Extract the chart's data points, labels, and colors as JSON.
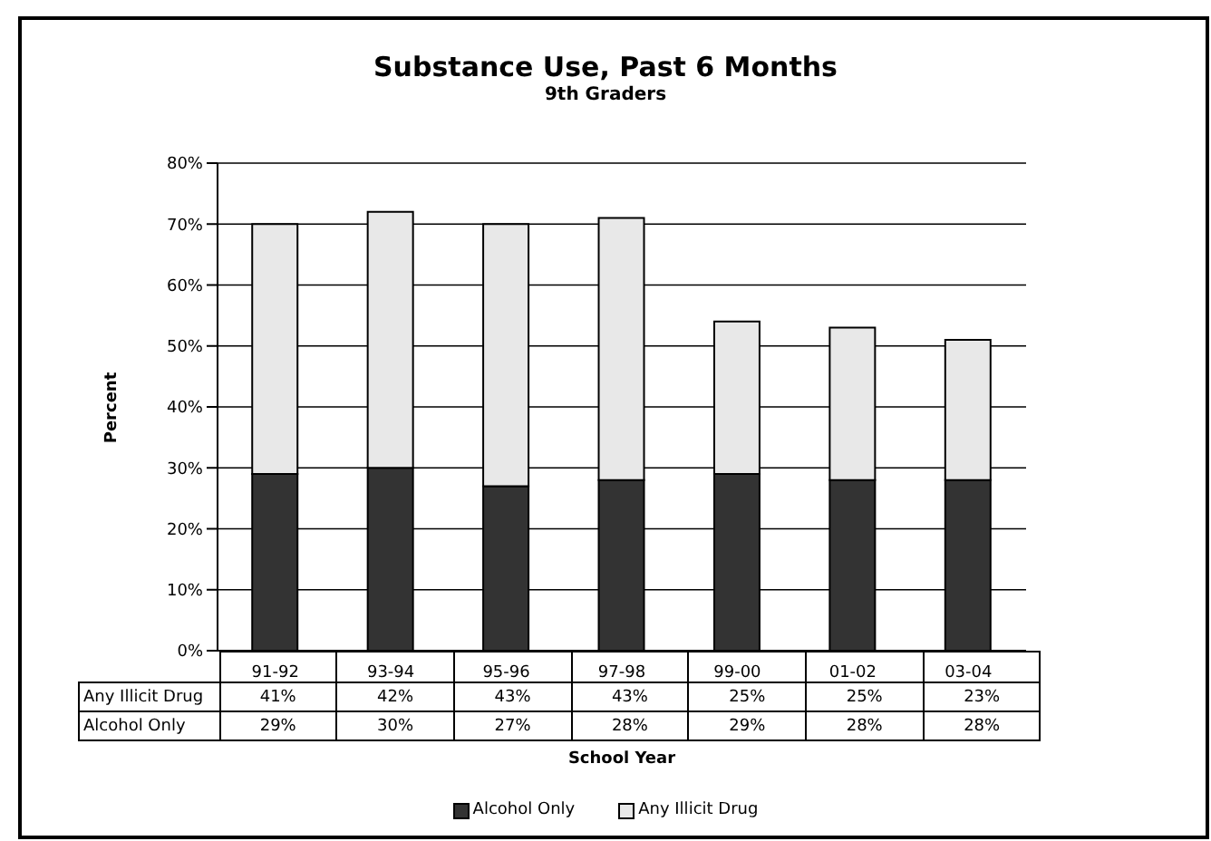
{
  "chart_data": {
    "type": "bar",
    "title": "Substance Use, Past 6 Months",
    "subtitle": "9th Graders",
    "xlabel": "School Year",
    "ylabel": "Percent",
    "categories": [
      "91-92",
      "93-94",
      "95-96",
      "97-98",
      "99-00",
      "01-02",
      "03-04"
    ],
    "stacked": true,
    "series": [
      {
        "name": "Alcohol Only",
        "color": "#333333",
        "values": [
          29,
          30,
          27,
          28,
          29,
          28,
          28
        ],
        "value_labels": [
          "29%",
          "30%",
          "27%",
          "28%",
          "29%",
          "28%",
          "28%"
        ]
      },
      {
        "name": "Any Illicit Drug",
        "color": "#e8e8e8",
        "values": [
          41,
          42,
          43,
          43,
          25,
          25,
          23
        ],
        "value_labels": [
          "41%",
          "42%",
          "43%",
          "43%",
          "25%",
          "25%",
          "23%"
        ]
      }
    ],
    "ylim": [
      0,
      80
    ],
    "yticks": [
      {
        "value": 0,
        "label": "0%"
      },
      {
        "value": 10,
        "label": "10%"
      },
      {
        "value": 20,
        "label": "20%"
      },
      {
        "value": 30,
        "label": "30%"
      },
      {
        "value": 40,
        "label": "40%"
      },
      {
        "value": 50,
        "label": "50%"
      },
      {
        "value": 60,
        "label": "60%"
      },
      {
        "value": 70,
        "label": "70%"
      },
      {
        "value": 80,
        "label": "80%"
      }
    ],
    "grid": "y",
    "legend": "bottom"
  }
}
